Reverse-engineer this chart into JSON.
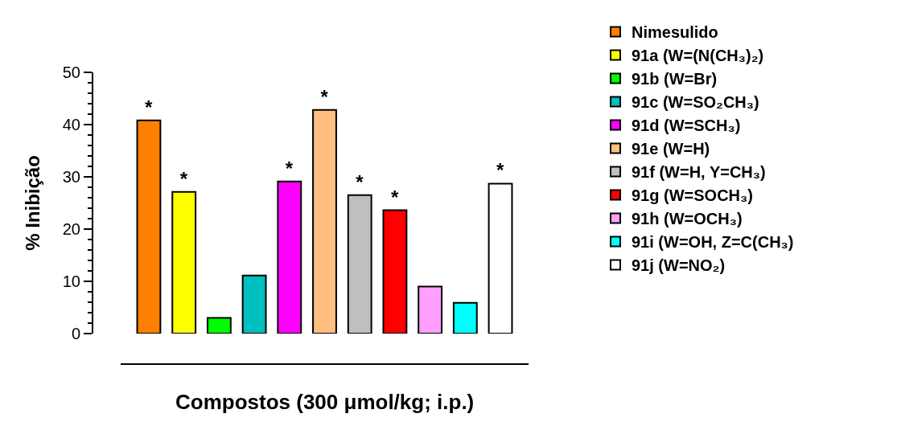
{
  "chart_data": {
    "type": "bar",
    "stacked": true,
    "xlabel": "Compostos (300 μmol/kg; i.p.)",
    "ylabel": "% Inibição",
    "categories": [
      null,
      null,
      null,
      null,
      null,
      null,
      null,
      null,
      null,
      null,
      null
    ],
    "ylim": [
      0,
      50
    ],
    "yticks": [
      0,
      10,
      20,
      30,
      40,
      50
    ],
    "legend": "right",
    "tick_labels": "y",
    "series": [
      {
        "name": "Nimesulido",
        "color": "#ff8000",
        "values": [
          40.8,
          null,
          null,
          null,
          null,
          null,
          null,
          null,
          null,
          null,
          null
        ],
        "value_labels": [
          "*",
          null,
          null,
          null,
          null,
          null,
          null,
          null,
          null,
          null,
          null
        ]
      },
      {
        "name": "91a (W=(N(CH₃)₂)",
        "color": "#ffff00",
        "values": [
          null,
          27.1,
          null,
          null,
          null,
          null,
          null,
          null,
          null,
          null,
          null
        ],
        "value_labels": [
          null,
          "*",
          null,
          null,
          null,
          null,
          null,
          null,
          null,
          null,
          null
        ]
      },
      {
        "name": "91b (W=Br)",
        "color": "#00ff00",
        "values": [
          null,
          null,
          3.0,
          null,
          null,
          null,
          null,
          null,
          null,
          null,
          null
        ]
      },
      {
        "name": "91c (W=SO₂CH₃)",
        "color": "#00bfbf",
        "values": [
          null,
          null,
          null,
          11.1,
          null,
          null,
          null,
          null,
          null,
          null,
          null
        ]
      },
      {
        "name": "91d (W=SCH₃)",
        "color": "#ff00ff",
        "values": [
          null,
          null,
          null,
          null,
          29.1,
          null,
          null,
          null,
          null,
          null,
          null
        ],
        "value_labels": [
          null,
          null,
          null,
          null,
          "*",
          null,
          null,
          null,
          null,
          null,
          null
        ]
      },
      {
        "name": "91e (W=H)",
        "color": "#ffbf80",
        "values": [
          null,
          null,
          null,
          null,
          null,
          42.8,
          null,
          null,
          null,
          null,
          null
        ],
        "value_labels": [
          null,
          null,
          null,
          null,
          null,
          "*",
          null,
          null,
          null,
          null,
          null
        ]
      },
      {
        "name": "91f (W=H, Y=CH₃)",
        "color": "#bfbfbf",
        "values": [
          null,
          null,
          null,
          null,
          null,
          null,
          26.5,
          null,
          null,
          null,
          null
        ],
        "value_labels": [
          null,
          null,
          null,
          null,
          null,
          null,
          "*",
          null,
          null,
          null,
          null
        ]
      },
      {
        "name": "91g (W=SOCH₃)",
        "color": "#ff0000",
        "values": [
          null,
          null,
          null,
          null,
          null,
          null,
          null,
          23.6,
          null,
          null,
          null
        ],
        "value_labels": [
          null,
          null,
          null,
          null,
          null,
          null,
          null,
          "*",
          null,
          null,
          null
        ]
      },
      {
        "name": "91h (W=OCH₃)",
        "color": "#ff9fff",
        "values": [
          null,
          null,
          null,
          null,
          null,
          null,
          null,
          null,
          9.0,
          null,
          null
        ]
      },
      {
        "name": "91i (W=OH, Z=C(CH₃)",
        "color": "#00ffff",
        "values": [
          null,
          null,
          null,
          null,
          null,
          null,
          null,
          null,
          null,
          5.9,
          null
        ]
      },
      {
        "name": "91j (W=NO₂)",
        "color": "#ffffff",
        "values": [
          null,
          null,
          null,
          null,
          null,
          null,
          null,
          null,
          null,
          null,
          28.7
        ],
        "value_labels": [
          null,
          null,
          null,
          null,
          null,
          null,
          null,
          null,
          null,
          null,
          "*"
        ]
      }
    ]
  }
}
